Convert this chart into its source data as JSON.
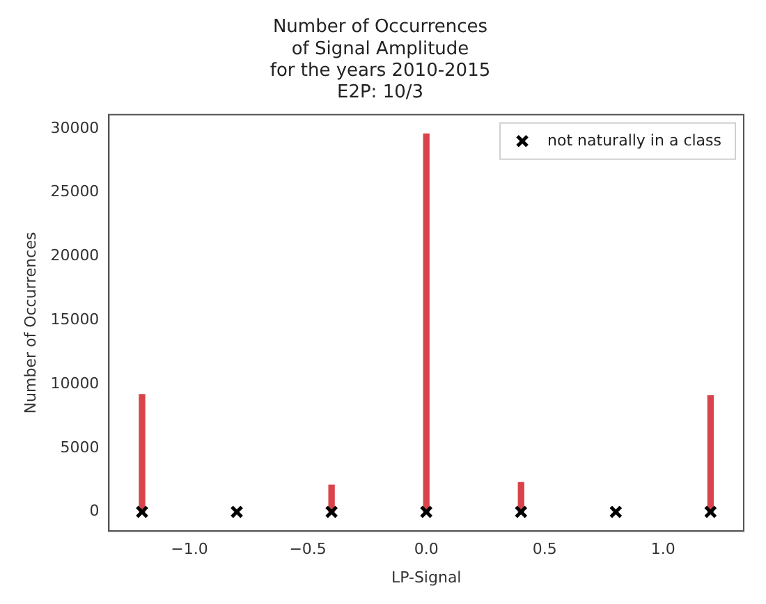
{
  "chart_data": {
    "type": "bar",
    "title": "Number of Occurrences\nof Signal Amplitude\nfor the years 2010-2015",
    "subtitle": "E2P: 10/3",
    "xlabel": "LP-Signal",
    "ylabel": "Number of Occurrences",
    "series": [
      {
        "color": "#d9444a",
        "x": [
          -1.2,
          -0.4,
          0.0,
          0.4,
          1.2
        ],
        "values": [
          9200,
          2100,
          29600,
          2300,
          9100
        ]
      },
      {
        "type": "scatter",
        "name": "not naturally in a class",
        "color": "#000000",
        "marker": "cross",
        "x": [
          -1.2,
          -0.8,
          -0.4,
          0.0,
          0.4,
          0.8,
          1.2
        ],
        "values": [
          0,
          0,
          0,
          0,
          0,
          0,
          0
        ]
      }
    ],
    "xlim": [
      -1.34,
      1.34
    ],
    "xticks": [
      {
        "value": -1,
        "label": "−1.0"
      },
      {
        "value": -0.5,
        "label": "−0.5"
      },
      {
        "value": 0,
        "label": "0.0"
      },
      {
        "value": 0.5,
        "label": "0.5"
      },
      {
        "value": 1,
        "label": "1.0"
      }
    ],
    "ylim": [
      -1500,
      31100
    ],
    "yticks": [
      0,
      5000,
      10000,
      15000,
      20000,
      25000,
      30000
    ],
    "grid": false,
    "legend": "top right"
  }
}
